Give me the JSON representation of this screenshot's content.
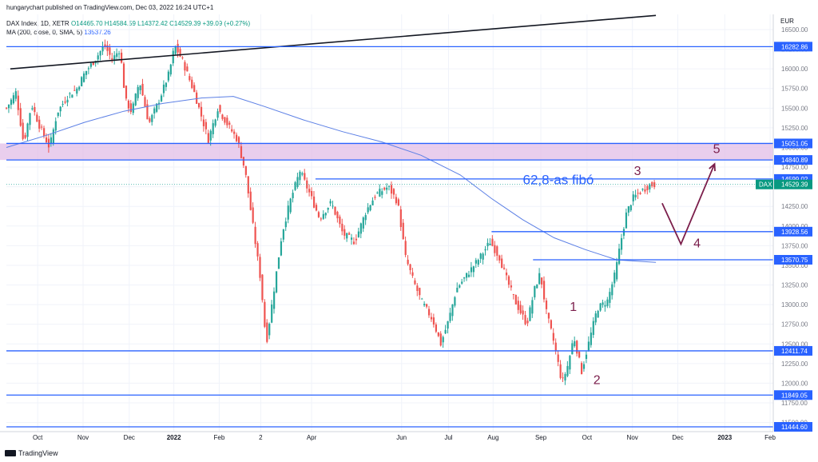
{
  "header": {
    "publisher": "hungarychart published on TradingView.com, Dec 03, 2022 16:24 UTC+1",
    "symbol": "DAX Index, 1D, XETR",
    "ohlc": "O14465.70  H14584.59  L14372.42  C14529.39  +39.09 (+0.27%)",
    "ma_label": "MA (200, close, 0, SMA, 5)",
    "ma_value": "13537.26"
  },
  "footer": {
    "brand": "TradingView"
  },
  "chart_data": {
    "type": "candlestick",
    "currency": "EUR",
    "ylim": [
      11350,
      16750
    ],
    "y_ticks": [
      11500,
      11750,
      12000,
      12250,
      12500,
      12750,
      13000,
      13250,
      13500,
      13750,
      14000,
      14250,
      14500,
      14750,
      15000,
      15250,
      15500,
      15750,
      16000,
      16250,
      16500
    ],
    "x_ticks": [
      "Oct",
      "Nov",
      "Dec",
      "2022",
      "Feb",
      "2",
      "Apr",
      "Jun",
      "Jul",
      "Aug",
      "Sep",
      "Oct",
      "Nov",
      "Dec",
      "2023",
      "Feb"
    ],
    "x_tick_index": [
      40,
      98,
      157,
      214,
      272,
      325,
      390,
      505,
      565,
      622,
      683,
      742,
      800,
      858,
      918,
      976
    ],
    "bar_count": 980,
    "horizontal_levels": [
      16282.86,
      15051.05,
      14840.89,
      14599.02,
      13928.56,
      13570.75,
      12411.74,
      11849.05,
      11444.6
    ],
    "resistance_zone": [
      14840.89,
      15051.05
    ],
    "current_price": {
      "label": "DAX",
      "value": "14529.39"
    },
    "price_path": [
      [
        0,
        15500
      ],
      [
        12,
        15700
      ],
      [
        22,
        15050
      ],
      [
        32,
        15550
      ],
      [
        42,
        15280
      ],
      [
        55,
        15000
      ],
      [
        65,
        15450
      ],
      [
        78,
        15650
      ],
      [
        90,
        15750
      ],
      [
        100,
        15950
      ],
      [
        112,
        16100
      ],
      [
        125,
        16300
      ],
      [
        135,
        16120
      ],
      [
        145,
        16250
      ],
      [
        152,
        15600
      ],
      [
        160,
        15450
      ],
      [
        170,
        15850
      ],
      [
        182,
        15300
      ],
      [
        195,
        15600
      ],
      [
        208,
        15950
      ],
      [
        215,
        16300
      ],
      [
        225,
        16100
      ],
      [
        240,
        15700
      ],
      [
        258,
        15100
      ],
      [
        270,
        15500
      ],
      [
        282,
        15300
      ],
      [
        295,
        15100
      ],
      [
        305,
        14700
      ],
      [
        315,
        14000
      ],
      [
        325,
        13300
      ],
      [
        332,
        12500
      ],
      [
        342,
        13200
      ],
      [
        352,
        13900
      ],
      [
        362,
        14300
      ],
      [
        375,
        14700
      ],
      [
        388,
        14400
      ],
      [
        400,
        14100
      ],
      [
        415,
        14300
      ],
      [
        430,
        13900
      ],
      [
        445,
        13800
      ],
      [
        460,
        14200
      ],
      [
        472,
        14400
      ],
      [
        488,
        14500
      ],
      [
        500,
        14300
      ],
      [
        510,
        13600
      ],
      [
        520,
        13300
      ],
      [
        530,
        13050
      ],
      [
        545,
        12800
      ],
      [
        555,
        12500
      ],
      [
        565,
        12800
      ],
      [
        575,
        13200
      ],
      [
        590,
        13400
      ],
      [
        605,
        13600
      ],
      [
        618,
        13800
      ],
      [
        630,
        13600
      ],
      [
        640,
        13300
      ],
      [
        652,
        13000
      ],
      [
        665,
        12750
      ],
      [
        675,
        13200
      ],
      [
        682,
        13400
      ],
      [
        690,
        12900
      ],
      [
        700,
        12500
      ],
      [
        710,
        12000
      ],
      [
        718,
        12250
      ],
      [
        725,
        12600
      ],
      [
        735,
        12150
      ],
      [
        745,
        12550
      ],
      [
        755,
        12950
      ],
      [
        768,
        13050
      ],
      [
        778,
        13400
      ],
      [
        785,
        13800
      ],
      [
        792,
        14150
      ],
      [
        800,
        14350
      ],
      [
        812,
        14450
      ],
      [
        822,
        14520
      ],
      [
        830,
        14529.39
      ]
    ],
    "ma_path": [
      [
        0,
        15000
      ],
      [
        50,
        15150
      ],
      [
        100,
        15320
      ],
      [
        150,
        15460
      ],
      [
        200,
        15560
      ],
      [
        250,
        15630
      ],
      [
        290,
        15650
      ],
      [
        330,
        15520
      ],
      [
        380,
        15350
      ],
      [
        430,
        15200
      ],
      [
        480,
        15070
      ],
      [
        530,
        14900
      ],
      [
        580,
        14650
      ],
      [
        620,
        14350
      ],
      [
        660,
        14080
      ],
      [
        700,
        13850
      ],
      [
        740,
        13700
      ],
      [
        780,
        13570
      ],
      [
        830,
        13537
      ]
    ],
    "upper_trendline": [
      [
        5,
        16000
      ],
      [
        830,
        16680
      ]
    ],
    "h_segments": [
      {
        "level": 16282.86,
        "from": 0
      },
      {
        "level": 15051.05,
        "from": 0
      },
      {
        "level": 14840.89,
        "from": 0
      },
      {
        "level": 14599.02,
        "from": 395
      },
      {
        "level": 13928.56,
        "from": 620
      },
      {
        "level": 13570.75,
        "from": 673
      },
      {
        "level": 12411.74,
        "from": 0
      },
      {
        "level": 11849.05,
        "from": 0
      },
      {
        "level": 11444.6,
        "from": 0
      }
    ],
    "projection": [
      [
        838,
        14290
      ],
      [
        862,
        13770
      ],
      [
        905,
        14790
      ]
    ],
    "annotations": [
      {
        "text": "62,8-as fibó",
        "x": 660,
        "y": 14530,
        "color": "#2962ff"
      },
      {
        "text": "1",
        "x": 720,
        "y": 12920,
        "color": "#7b1e4b"
      },
      {
        "text": "2",
        "x": 750,
        "y": 11990,
        "color": "#7b1e4b"
      },
      {
        "text": "3",
        "x": 802,
        "y": 14650,
        "color": "#7b1e4b"
      },
      {
        "text": "4",
        "x": 878,
        "y": 13730,
        "color": "#7b1e4b"
      },
      {
        "text": "5",
        "x": 903,
        "y": 14930,
        "color": "#7b1e4b"
      }
    ]
  }
}
